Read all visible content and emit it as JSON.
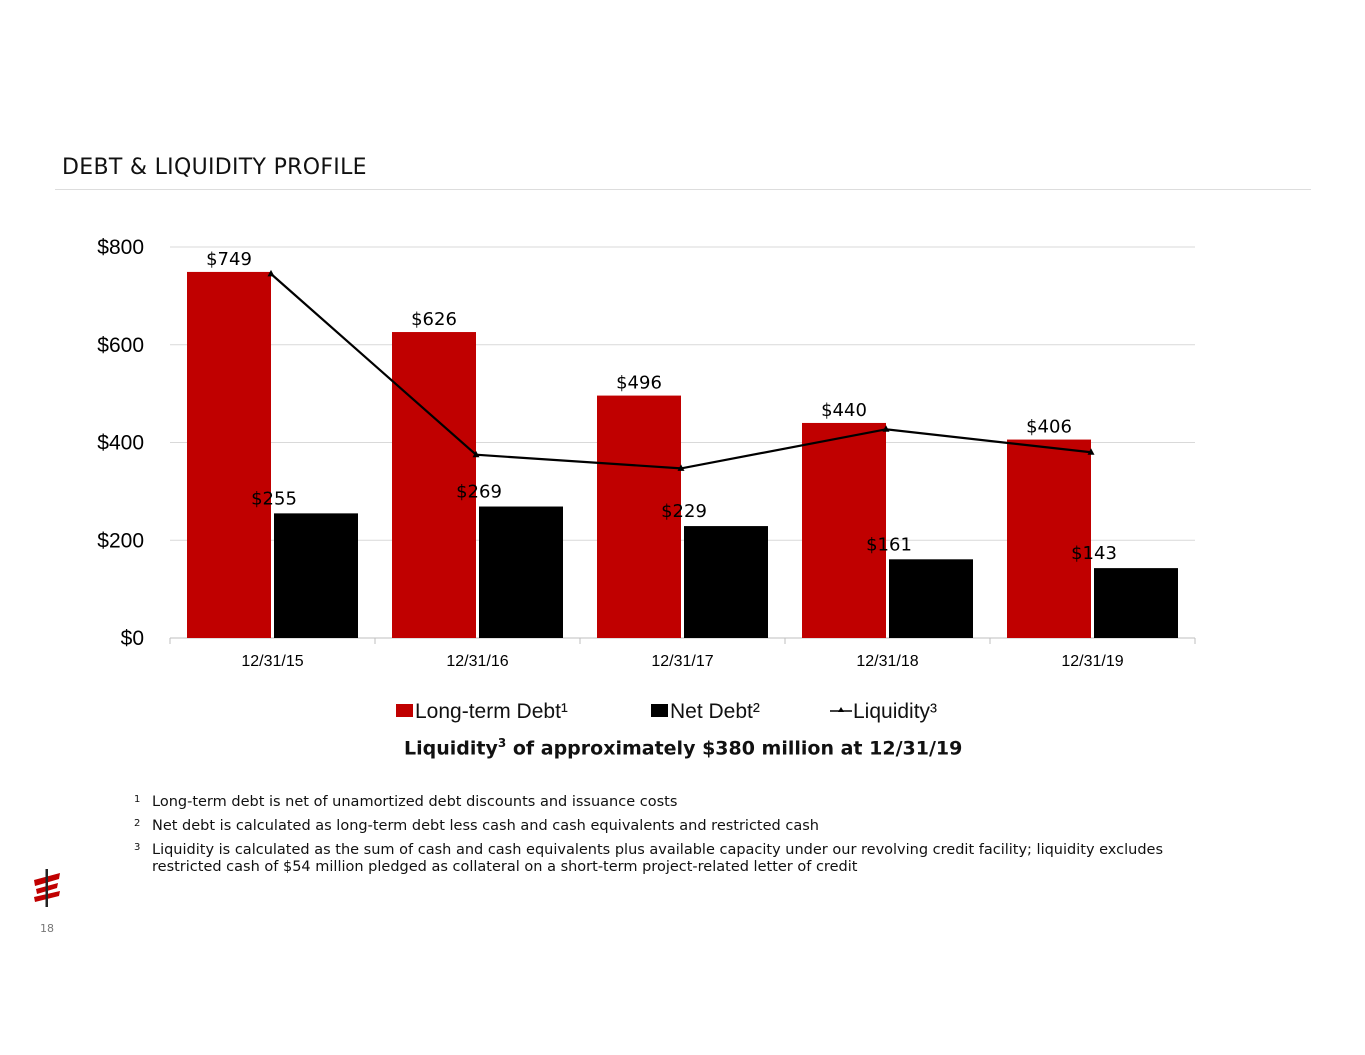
{
  "slide": {
    "title": "DEBT & LIQUIDITY PROFILE",
    "page_number": "18"
  },
  "legend": {
    "items": [
      {
        "label": "Long-term Debt¹",
        "color": "#c00000",
        "kind": "bar"
      },
      {
        "label": "Net Debt²",
        "color": "#000000",
        "kind": "bar"
      },
      {
        "label": "Liquidity³",
        "color": "#000000",
        "kind": "line"
      }
    ]
  },
  "caption": {
    "prefix": "Liquidity",
    "sup": "3",
    "suffix": " of approximately $380 million at 12/31/19"
  },
  "footnotes": [
    {
      "num": "1",
      "text": "Long-term debt is net of unamortized debt discounts and issuance costs"
    },
    {
      "num": "2",
      "text": "Net debt is calculated as long-term debt less cash and cash equivalents and restricted cash"
    },
    {
      "num": "3",
      "text": "Liquidity is calculated as the sum of cash and cash equivalents plus available capacity under our revolving credit facility; liquidity excludes restricted cash of $54 million pledged as collateral on a short-term project-related letter of credit"
    }
  ],
  "chart_data": {
    "type": "bar",
    "categories": [
      "12/31/15",
      "12/31/16",
      "12/31/17",
      "12/31/18",
      "12/31/19"
    ],
    "series": [
      {
        "name": "Long-term Debt¹",
        "type": "bar",
        "color": "#c00000",
        "values": [
          749,
          626,
          496,
          440,
          406
        ],
        "labels": [
          "$749",
          "$626",
          "$496",
          "$440",
          "$406"
        ]
      },
      {
        "name": "Net Debt²",
        "type": "bar",
        "color": "#000000",
        "values": [
          255,
          269,
          229,
          161,
          143
        ],
        "labels": [
          "$255",
          "$269",
          "$229",
          "$161",
          "$143"
        ]
      },
      {
        "name": "Liquidity³",
        "type": "line",
        "color": "#000000",
        "values": [
          745,
          375,
          347,
          427,
          380
        ]
      }
    ],
    "ylim": [
      0,
      800
    ],
    "yticks": [
      0,
      200,
      400,
      600,
      800
    ],
    "ytick_labels": [
      "$0",
      "$200",
      "$400",
      "$600",
      "$800"
    ],
    "grid": true,
    "legend_position": "bottom"
  }
}
